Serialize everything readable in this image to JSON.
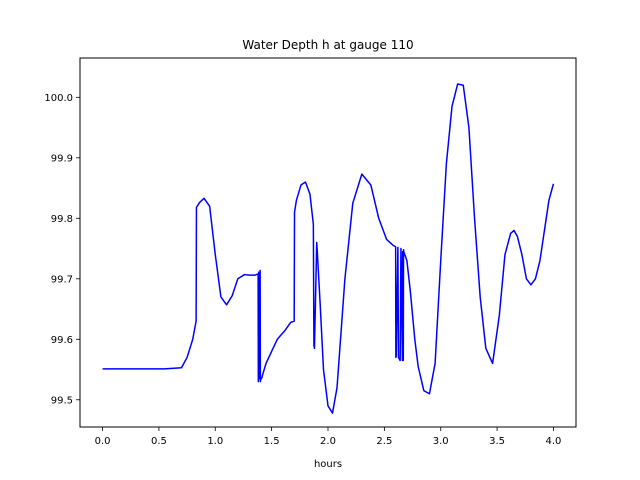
{
  "chart_data": {
    "type": "line",
    "title": "Water Depth h at gauge 110",
    "xlabel": "hours",
    "ylabel": "",
    "xlim": [
      -0.2,
      4.2
    ],
    "ylim": [
      99.455,
      100.065
    ],
    "xticks": [
      0.0,
      0.5,
      1.0,
      1.5,
      2.0,
      2.5,
      3.0,
      3.5,
      4.0
    ],
    "xtick_labels": [
      "0.0",
      "0.5",
      "1.0",
      "1.5",
      "2.0",
      "2.5",
      "3.0",
      "3.5",
      "4.0"
    ],
    "yticks": [
      99.5,
      99.6,
      99.7,
      99.8,
      99.9,
      100.0
    ],
    "ytick_labels": [
      "99.5",
      "99.6",
      "99.7",
      "99.8",
      "99.9",
      "100.0"
    ],
    "grid": false,
    "series": [
      {
        "color": "#0000ff",
        "x": [
          0.0,
          0.3,
          0.55,
          0.7,
          0.75,
          0.8,
          0.83,
          0.833,
          0.86,
          0.9,
          0.95,
          1.0,
          1.05,
          1.1,
          1.15,
          1.2,
          1.26,
          1.3,
          1.35,
          1.38,
          1.382,
          1.386,
          1.39,
          1.398,
          1.4,
          1.405,
          1.41,
          1.414,
          1.418,
          1.45,
          1.55,
          1.62,
          1.67,
          1.7,
          1.703,
          1.72,
          1.76,
          1.8,
          1.84,
          1.87,
          1.875,
          1.88,
          1.9,
          1.905,
          1.93,
          1.96,
          2.0,
          2.04,
          2.08,
          2.15,
          2.22,
          2.3,
          2.38,
          2.45,
          2.52,
          2.58,
          2.6,
          2.602,
          2.605,
          2.62,
          2.625,
          2.64,
          2.647,
          2.66,
          2.662,
          2.668,
          2.67,
          2.672,
          2.7,
          2.73,
          2.77,
          2.8,
          2.85,
          2.9,
          2.95,
          3.0,
          3.05,
          3.1,
          3.15,
          3.2,
          3.25,
          3.3,
          3.35,
          3.4,
          3.46,
          3.52,
          3.57,
          3.62,
          3.65,
          3.68,
          3.72,
          3.76,
          3.8,
          3.84,
          3.88,
          3.92,
          3.96,
          4.0
        ],
        "y": [
          99.551,
          99.551,
          99.551,
          99.553,
          99.57,
          99.6,
          99.63,
          99.818,
          99.826,
          99.833,
          99.82,
          99.74,
          99.67,
          99.657,
          99.672,
          99.7,
          99.707,
          99.706,
          99.706,
          99.708,
          99.53,
          99.711,
          99.535,
          99.714,
          99.53,
          99.535,
          99.535,
          99.537,
          99.54,
          99.56,
          99.6,
          99.615,
          99.628,
          99.63,
          99.81,
          99.83,
          99.855,
          99.86,
          99.84,
          99.79,
          99.59,
          99.585,
          99.76,
          99.745,
          99.66,
          99.55,
          99.49,
          99.478,
          99.52,
          99.7,
          99.825,
          99.873,
          99.855,
          99.8,
          99.765,
          99.755,
          99.753,
          99.57,
          99.572,
          99.752,
          99.57,
          99.565,
          99.75,
          99.565,
          99.745,
          99.565,
          99.748,
          99.745,
          99.73,
          99.68,
          99.6,
          99.555,
          99.515,
          99.51,
          99.56,
          99.73,
          99.89,
          99.985,
          100.022,
          100.02,
          99.95,
          99.8,
          99.67,
          99.585,
          99.56,
          99.64,
          99.74,
          99.775,
          99.78,
          99.77,
          99.74,
          99.7,
          99.69,
          99.7,
          99.73,
          99.78,
          99.83,
          99.857
        ]
      }
    ]
  }
}
